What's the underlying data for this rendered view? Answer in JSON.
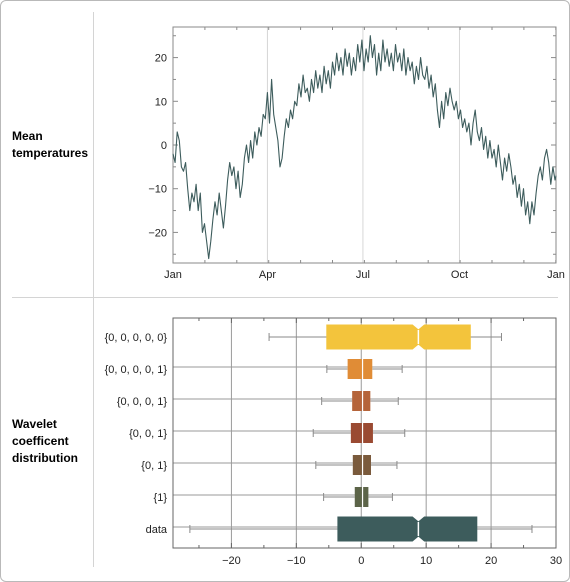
{
  "grid": {
    "row1_label_lines": [
      "Mean",
      "temperatures"
    ],
    "row2_label_lines": [
      "Wavelet",
      "coefficent",
      "distribution"
    ]
  },
  "chart_data": [
    {
      "type": "line",
      "title": "",
      "xlabel": "",
      "ylabel": "",
      "x_ticks": [
        "Jan",
        "Apr",
        "Jul",
        "Oct",
        "Jan"
      ],
      "x_tick_days": [
        0,
        90,
        181,
        273,
        365
      ],
      "y_ticks": [
        -20,
        -10,
        0,
        10,
        20
      ],
      "xlim": [
        0,
        365
      ],
      "ylim": [
        -27,
        27
      ],
      "grid": "vertical lines at month ticks",
      "color": "#3d5c5c",
      "series": [
        {
          "points_day_value": [
            [
              0,
              -2
            ],
            [
              2,
              -4
            ],
            [
              4,
              3
            ],
            [
              6,
              1
            ],
            [
              8,
              -5
            ],
            [
              10,
              -6
            ],
            [
              12,
              -4
            ],
            [
              14,
              -10
            ],
            [
              16,
              -15
            ],
            [
              18,
              -11
            ],
            [
              20,
              -13
            ],
            [
              22,
              -9
            ],
            [
              24,
              -15
            ],
            [
              26,
              -11
            ],
            [
              28,
              -20
            ],
            [
              30,
              -18
            ],
            [
              32,
              -22
            ],
            [
              34,
              -26
            ],
            [
              36,
              -22
            ],
            [
              38,
              -17
            ],
            [
              40,
              -13
            ],
            [
              42,
              -16
            ],
            [
              44,
              -11
            ],
            [
              46,
              -15
            ],
            [
              48,
              -19
            ],
            [
              50,
              -14
            ],
            [
              52,
              -8
            ],
            [
              54,
              -4
            ],
            [
              56,
              -7
            ],
            [
              58,
              -5
            ],
            [
              60,
              -10
            ],
            [
              62,
              -6
            ],
            [
              64,
              -12
            ],
            [
              66,
              -9
            ],
            [
              68,
              -3
            ],
            [
              70,
              0
            ],
            [
              72,
              -4
            ],
            [
              74,
              1
            ],
            [
              76,
              -3
            ],
            [
              78,
              3
            ],
            [
              80,
              0
            ],
            [
              82,
              4
            ],
            [
              84,
              2
            ],
            [
              86,
              7
            ],
            [
              88,
              6
            ],
            [
              90,
              12
            ],
            [
              92,
              5
            ],
            [
              94,
              15
            ],
            [
              96,
              7
            ],
            [
              98,
              4
            ],
            [
              100,
              1
            ],
            [
              102,
              -5
            ],
            [
              104,
              -3
            ],
            [
              106,
              2
            ],
            [
              108,
              6
            ],
            [
              110,
              4
            ],
            [
              112,
              8
            ],
            [
              114,
              6
            ],
            [
              116,
              10
            ],
            [
              118,
              9
            ],
            [
              120,
              14
            ],
            [
              122,
              11
            ],
            [
              124,
              16
            ],
            [
              126,
              12
            ],
            [
              128,
              13
            ],
            [
              130,
              10
            ],
            [
              132,
              15
            ],
            [
              134,
              12
            ],
            [
              136,
              17
            ],
            [
              138,
              13
            ],
            [
              140,
              16
            ],
            [
              142,
              12
            ],
            [
              144,
              18
            ],
            [
              146,
              14
            ],
            [
              148,
              17
            ],
            [
              150,
              13
            ],
            [
              152,
              19
            ],
            [
              154,
              16
            ],
            [
              156,
              21
            ],
            [
              158,
              17
            ],
            [
              160,
              20
            ],
            [
              162,
              16
            ],
            [
              164,
              22
            ],
            [
              166,
              18
            ],
            [
              168,
              21
            ],
            [
              170,
              16
            ],
            [
              172,
              20
            ],
            [
              174,
              17
            ],
            [
              176,
              23
            ],
            [
              178,
              19
            ],
            [
              180,
              24
            ],
            [
              182,
              17
            ],
            [
              184,
              22
            ],
            [
              186,
              19
            ],
            [
              188,
              25
            ],
            [
              190,
              20
            ],
            [
              192,
              23
            ],
            [
              194,
              16
            ],
            [
              196,
              21
            ],
            [
              198,
              17
            ],
            [
              200,
              24
            ],
            [
              202,
              19
            ],
            [
              204,
              22
            ],
            [
              206,
              18
            ],
            [
              208,
              21
            ],
            [
              210,
              17
            ],
            [
              212,
              23
            ],
            [
              214,
              19
            ],
            [
              216,
              21
            ],
            [
              218,
              17
            ],
            [
              220,
              22
            ],
            [
              222,
              16
            ],
            [
              224,
              20
            ],
            [
              226,
              17
            ],
            [
              228,
              19
            ],
            [
              230,
              14
            ],
            [
              232,
              18
            ],
            [
              234,
              15
            ],
            [
              236,
              20
            ],
            [
              238,
              16
            ],
            [
              240,
              15
            ],
            [
              242,
              18
            ],
            [
              244,
              13
            ],
            [
              246,
              16
            ],
            [
              248,
              11
            ],
            [
              250,
              14
            ],
            [
              252,
              8
            ],
            [
              254,
              4
            ],
            [
              256,
              10
            ],
            [
              258,
              6
            ],
            [
              260,
              12
            ],
            [
              262,
              9
            ],
            [
              264,
              13
            ],
            [
              266,
              10
            ],
            [
              268,
              8
            ],
            [
              270,
              10
            ],
            [
              272,
              6
            ],
            [
              274,
              8
            ],
            [
              276,
              4
            ],
            [
              278,
              6
            ],
            [
              280,
              3
            ],
            [
              282,
              5
            ],
            [
              284,
              0
            ],
            [
              286,
              5
            ],
            [
              288,
              8
            ],
            [
              290,
              3
            ],
            [
              292,
              1
            ],
            [
              294,
              4
            ],
            [
              296,
              -1
            ],
            [
              298,
              2
            ],
            [
              300,
              -3
            ],
            [
              302,
              1
            ],
            [
              304,
              -3
            ],
            [
              306,
              -1
            ],
            [
              308,
              -5
            ],
            [
              310,
              0
            ],
            [
              312,
              -4
            ],
            [
              314,
              -8
            ],
            [
              316,
              -3
            ],
            [
              318,
              -6
            ],
            [
              320,
              -2
            ],
            [
              322,
              -5
            ],
            [
              324,
              -9
            ],
            [
              326,
              -7
            ],
            [
              328,
              -12
            ],
            [
              330,
              -9
            ],
            [
              332,
              -14
            ],
            [
              334,
              -10
            ],
            [
              336,
              -16
            ],
            [
              338,
              -13
            ],
            [
              340,
              -18
            ],
            [
              342,
              -13
            ],
            [
              344,
              -16
            ],
            [
              346,
              -11
            ],
            [
              348,
              -7
            ],
            [
              350,
              -5
            ],
            [
              352,
              -8
            ],
            [
              354,
              -3
            ],
            [
              356,
              -1
            ],
            [
              358,
              -4
            ],
            [
              360,
              -9
            ],
            [
              362,
              -5
            ],
            [
              364,
              -8
            ],
            [
              365,
              -7
            ]
          ]
        }
      ]
    },
    {
      "type": "box",
      "title": "",
      "xlabel": "",
      "ylabel": "",
      "x_ticks": [
        -20,
        -10,
        0,
        10,
        20,
        30
      ],
      "x_tick_labels": [
        "−20",
        "−10",
        "0",
        "10",
        "20",
        "30"
      ],
      "xlim": [
        -29,
        30
      ],
      "grid": "vertical and horizontal grid lines",
      "categories": [
        "{0, 0, 0, 0, 0}",
        "{0, 0, 0, 0, 1}",
        "{0, 0, 0, 1}",
        "{0, 0, 1}",
        "{0, 1}",
        "{1}",
        "data"
      ],
      "boxes": [
        {
          "whisker_low": -14.2,
          "q1": -5.3,
          "median": 8.8,
          "q3": 16.8,
          "whisker_high": 21.6,
          "notched": true,
          "color": "#f3c43c"
        },
        {
          "whisker_low": -5.3,
          "q1": -2.1,
          "median": 0.2,
          "q3": 1.7,
          "whisker_high": 6.3,
          "notched": false,
          "color": "#e08c36"
        },
        {
          "whisker_low": -6.1,
          "q1": -1.4,
          "median": 0.2,
          "q3": 1.4,
          "whisker_high": 5.7,
          "notched": false,
          "color": "#b5643a"
        },
        {
          "whisker_low": -7.4,
          "q1": -1.6,
          "median": 0.2,
          "q3": 1.8,
          "whisker_high": 6.7,
          "notched": false,
          "color": "#9a4a32"
        },
        {
          "whisker_low": -7.0,
          "q1": -1.3,
          "median": 0.2,
          "q3": 1.5,
          "whisker_high": 5.5,
          "notched": false,
          "color": "#7a5a3c"
        },
        {
          "whisker_low": -5.8,
          "q1": -1.0,
          "median": 0.2,
          "q3": 1.1,
          "whisker_high": 4.8,
          "notched": false,
          "color": "#5c6448"
        },
        {
          "whisker_low": -26.4,
          "q1": -3.6,
          "median": 8.8,
          "q3": 17.8,
          "whisker_high": 26.3,
          "notched": true,
          "color": "#3d5c5c"
        }
      ]
    }
  ]
}
